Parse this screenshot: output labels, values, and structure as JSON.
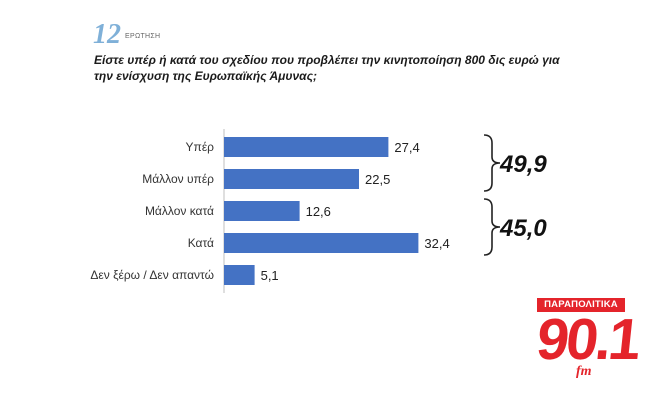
{
  "header": {
    "question_number": "12",
    "question_word": "ΕΡΩΤΗΣΗ",
    "question_text": "Είστε υπέρ ή κατά του σχεδίου που προβλέπει την κινητοποίηση 800 δις ευρώ για την ενίσχυση της Ευρωπαϊκής Άμυνας;"
  },
  "chart_data": {
    "type": "bar",
    "orientation": "horizontal",
    "categories": [
      "Υπέρ",
      "Μάλλον υπέρ",
      "Μάλλον κατά",
      "Κατά",
      "Δεν ξέρω / Δεν απαντώ"
    ],
    "values": [
      27.4,
      22.5,
      12.6,
      32.4,
      5.1
    ],
    "value_labels": [
      "27,4",
      "22,5",
      "12,6",
      "32,4",
      "5,1"
    ],
    "bar_color": "#4472c4",
    "xlim": [
      0,
      40
    ],
    "grid": false,
    "groups": [
      {
        "label": "49,9",
        "members": [
          0,
          1
        ]
      },
      {
        "label": "45,0",
        "members": [
          2,
          3
        ]
      }
    ]
  },
  "logo": {
    "top_text": "ΠΑΡΑΠΟΛΙΤΙΚΑ",
    "main_text": "90.1",
    "suffix_text": "fm",
    "color": "#e4242b"
  }
}
